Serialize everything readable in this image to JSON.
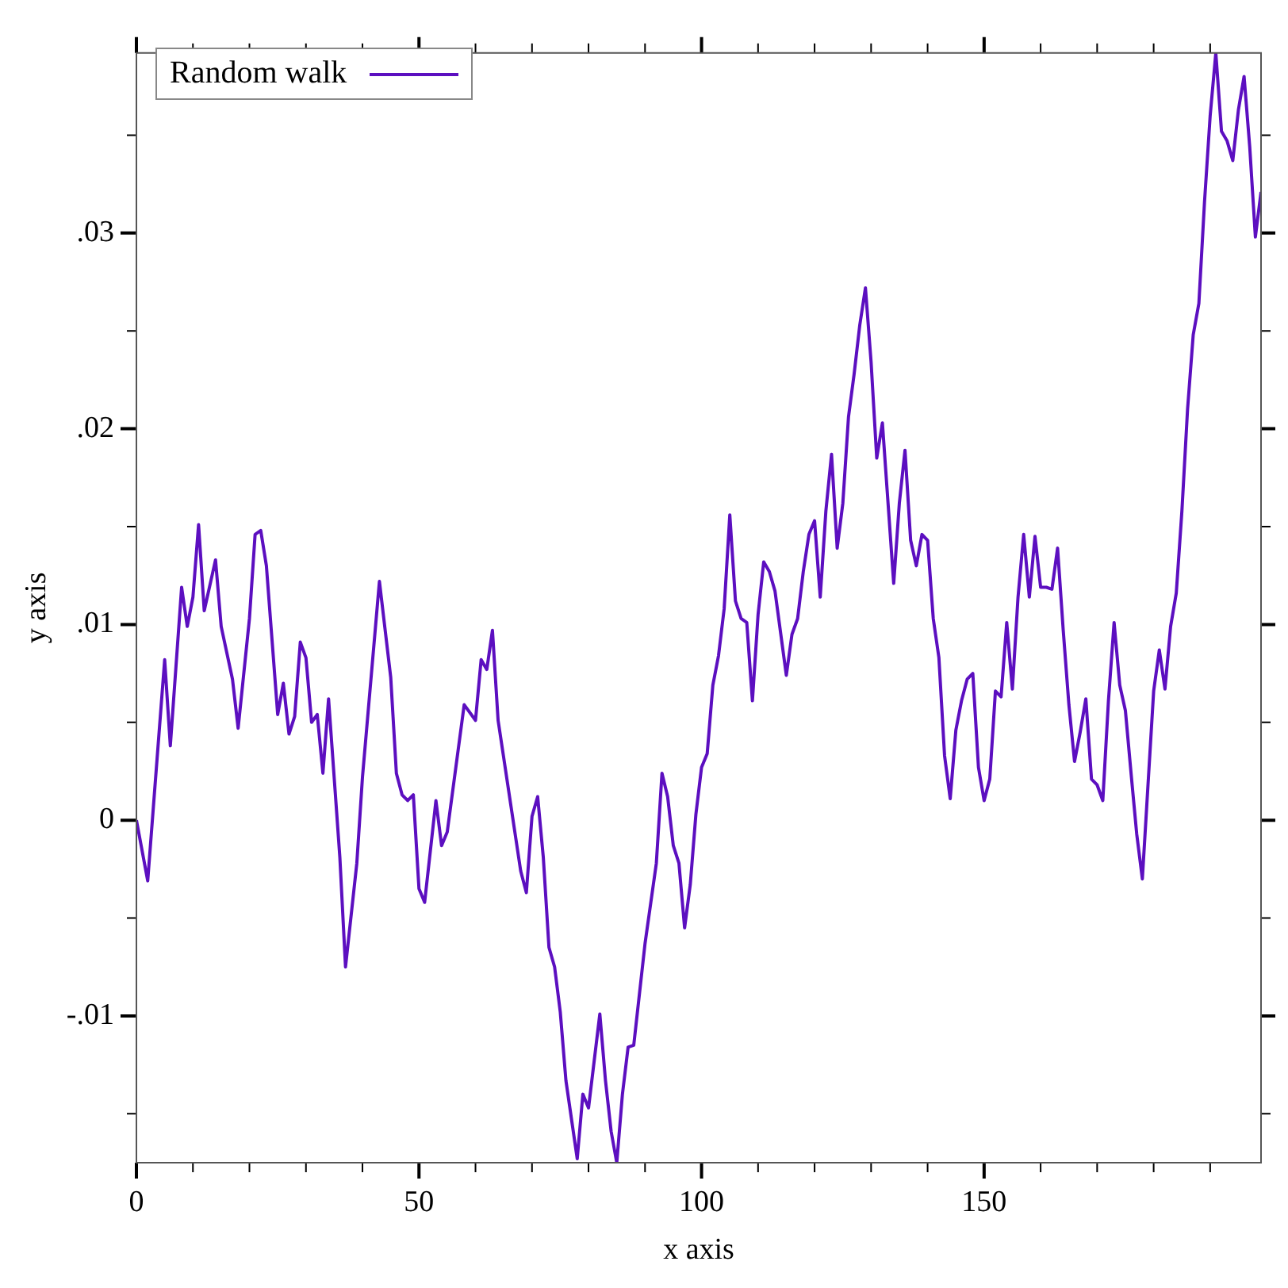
{
  "chart_data": {
    "type": "line",
    "xlabel": "x axis",
    "ylabel": "y axis",
    "legend": "top left",
    "xlim": [
      0,
      199
    ],
    "ylim": [
      -0.0175,
      0.0392
    ],
    "xticks": [
      0,
      {
        "value": 10,
        "label": null
      },
      {
        "value": 20,
        "label": null
      },
      {
        "value": 30,
        "label": null
      },
      {
        "value": 40,
        "label": null
      },
      50,
      {
        "value": 60,
        "label": null
      },
      {
        "value": 70,
        "label": null
      },
      {
        "value": 80,
        "label": null
      },
      {
        "value": 90,
        "label": null
      },
      100,
      {
        "value": 110,
        "label": null
      },
      {
        "value": 120,
        "label": null
      },
      {
        "value": 130,
        "label": null
      },
      {
        "value": 140,
        "label": null
      },
      150,
      {
        "value": 160,
        "label": null
      },
      {
        "value": 170,
        "label": null
      },
      {
        "value": 180,
        "label": null
      },
      {
        "value": 190,
        "label": null
      }
    ],
    "yticks": [
      {
        "value": -0.015,
        "label": null
      },
      {
        "value": -0.01,
        "label": "-.01"
      },
      {
        "value": -0.005,
        "label": null
      },
      0,
      {
        "value": 0.005,
        "label": null
      },
      {
        "value": 0.01,
        "label": ".01"
      },
      {
        "value": 0.015,
        "label": null
      },
      {
        "value": 0.02,
        "label": ".02"
      },
      {
        "value": 0.025,
        "label": null
      },
      {
        "value": 0.03,
        "label": ".03"
      },
      {
        "value": 0.035,
        "label": null
      }
    ],
    "x": [
      0,
      2,
      5,
      6,
      8,
      9,
      10,
      11,
      12,
      14,
      15,
      17,
      18,
      20,
      21,
      22,
      23,
      24,
      25,
      26,
      27,
      28,
      29,
      30,
      31,
      32,
      33,
      34,
      36,
      37,
      39,
      40,
      43,
      45,
      46,
      47,
      48,
      49,
      50,
      51,
      53,
      54,
      55,
      58,
      60,
      61,
      62,
      63,
      64,
      68,
      69,
      70,
      71,
      72,
      73,
      74,
      75,
      76,
      78,
      79,
      80,
      82,
      83,
      84,
      85,
      86,
      87,
      88,
      90,
      92,
      93,
      94,
      95,
      96,
      97,
      98,
      99,
      100,
      101,
      102,
      103,
      104,
      105,
      106,
      107,
      108,
      109,
      110,
      111,
      112,
      113,
      115,
      116,
      117,
      118,
      119,
      120,
      121,
      122,
      123,
      124,
      125,
      126,
      127,
      128,
      129,
      130,
      131,
      132,
      134,
      135,
      136,
      137,
      138,
      139,
      140,
      141,
      142,
      143,
      144,
      145,
      146,
      147,
      148,
      149,
      150,
      151,
      152,
      153,
      154,
      155,
      156,
      157,
      158,
      159,
      160,
      161,
      162,
      163,
      164,
      165,
      166,
      167,
      168,
      169,
      170,
      171,
      172,
      173,
      174,
      175,
      176,
      177,
      178,
      179,
      180,
      181,
      182,
      183,
      184,
      185,
      186,
      187,
      188,
      189,
      190,
      191,
      192,
      193,
      194,
      195,
      196,
      197,
      198,
      199
    ],
    "series": [
      {
        "name": "Random walk",
        "color": "#5c0fc0",
        "values": [
          0,
          -0.0031,
          0.0082,
          0.0038,
          0.0119,
          0.0099,
          0.0114,
          0.0151,
          0.0107,
          0.0133,
          0.0099,
          0.0072,
          0.0047,
          0.0103,
          0.0146,
          0.0148,
          0.013,
          0.0092,
          0.0054,
          0.007,
          0.0044,
          0.0053,
          0.0091,
          0.0083,
          0.005,
          0.0054,
          0.0024,
          0.0062,
          -0.0019,
          -0.0075,
          -0.0022,
          0.0022,
          0.0122,
          0.0073,
          0.0024,
          0.0013,
          0.001,
          0.0013,
          -0.0035,
          -0.0042,
          0.001,
          -0.0013,
          -0.0006,
          0.0059,
          0.0051,
          0.0082,
          0.0077,
          0.0097,
          0.0051,
          -0.0026,
          -0.0037,
          0.0002,
          0.0012,
          -0.0019,
          -0.0065,
          -0.0075,
          -0.0098,
          -0.0133,
          -0.0173,
          -0.014,
          -0.0147,
          -0.0099,
          -0.0133,
          -0.0159,
          -0.0175,
          -0.014,
          -0.0116,
          -0.0115,
          -0.0063,
          -0.0022,
          0.0024,
          0.0012,
          -0.0013,
          -0.0022,
          -0.0055,
          -0.0033,
          0.0003,
          0.0027,
          0.0034,
          0.0069,
          0.0084,
          0.0108,
          0.0156,
          0.0112,
          0.0103,
          0.0101,
          0.0061,
          0.0105,
          0.0132,
          0.0127,
          0.0117,
          0.0074,
          0.0095,
          0.0103,
          0.0127,
          0.0146,
          0.0153,
          0.0114,
          0.0158,
          0.0187,
          0.0139,
          0.0162,
          0.0206,
          0.0228,
          0.0253,
          0.0272,
          0.0234,
          0.0185,
          0.0203,
          0.0121,
          0.0162,
          0.0189,
          0.0143,
          0.013,
          0.0146,
          0.0143,
          0.0103,
          0.0083,
          0.0033,
          0.0011,
          0.0046,
          0.0061,
          0.0072,
          0.0075,
          0.0027,
          0.001,
          0.0021,
          0.0066,
          0.0063,
          0.0101,
          0.0067,
          0.0114,
          0.0146,
          0.0114,
          0.0145,
          0.0119,
          0.0119,
          0.0118,
          0.0139,
          0.0097,
          0.0059,
          0.003,
          0.0045,
          0.0062,
          0.0021,
          0.0018,
          0.001,
          0.0061,
          0.0101,
          0.0069,
          0.0056,
          0.0024,
          -0.0007,
          -0.003,
          0.0018,
          0.0066,
          0.0087,
          0.0067,
          0.0099,
          0.0116,
          0.0158,
          0.021,
          0.0248,
          0.0264,
          0.0316,
          0.036,
          0.0392,
          0.0352,
          0.0347,
          0.0337,
          0.0363,
          0.038,
          0.0344,
          0.0298,
          0.0321
        ]
      }
    ]
  }
}
